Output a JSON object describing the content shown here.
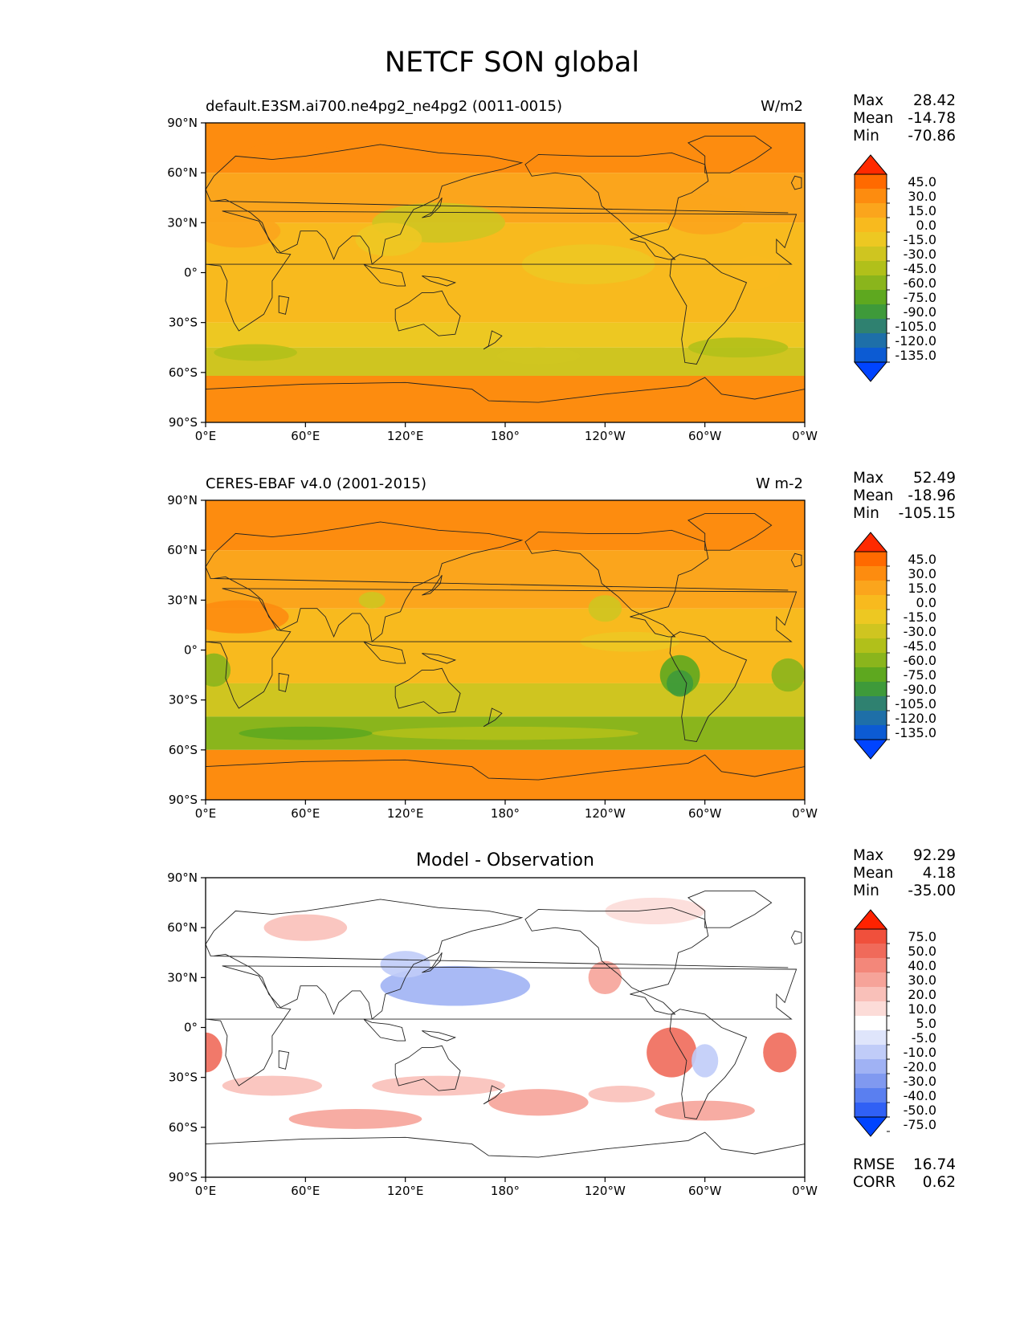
{
  "title": "NETCF SON global",
  "lat_ticks": [
    "90°N",
    "60°N",
    "30°N",
    "0°",
    "30°S",
    "60°S",
    "90°S"
  ],
  "lon_ticks": [
    "0°E",
    "60°E",
    "120°E",
    "180°",
    "120°W",
    "60°W",
    "0°W"
  ],
  "panels": [
    {
      "left_title": "default.E3SM.ai700.ne4pg2_ne4pg2 (0011-0015)",
      "center_title": "",
      "right_title": "W/m2",
      "stats": [
        {
          "label": "Max",
          "value": "28.42"
        },
        {
          "label": "Mean",
          "value": "-14.78"
        },
        {
          "label": "Min",
          "value": "-70.86"
        }
      ],
      "levels": [
        "45.0",
        "30.0",
        "15.0",
        "0.0",
        "-15.0",
        "-30.0",
        "-45.0",
        "-60.0",
        "-75.0",
        "-90.0",
        "-105.0",
        "-120.0",
        "-135.0"
      ],
      "colors": [
        "#ff2a00",
        "#ff6a00",
        "#fd8c0f",
        "#fba51c",
        "#f8ba1e",
        "#edc822",
        "#cfc520",
        "#b1c01a",
        "#8ab51c",
        "#5ea81f",
        "#3e9a3a",
        "#2f8170",
        "#1e6fa8",
        "#0c5bd3",
        "#0044ff"
      ],
      "extra": []
    },
    {
      "left_title": "CERES-EBAF v4.0 (2001-2015)",
      "center_title": "",
      "right_title": "W m-2",
      "stats": [
        {
          "label": "Max",
          "value": "52.49"
        },
        {
          "label": "Mean",
          "value": "-18.96"
        },
        {
          "label": "Min",
          "value": "-105.15"
        }
      ],
      "levels": [
        "45.0",
        "30.0",
        "15.0",
        "0.0",
        "-15.0",
        "-30.0",
        "-45.0",
        "-60.0",
        "-75.0",
        "-90.0",
        "-105.0",
        "-120.0",
        "-135.0"
      ],
      "colors": [
        "#ff2a00",
        "#ff6a00",
        "#fd8c0f",
        "#fba51c",
        "#f8ba1e",
        "#edc822",
        "#cfc520",
        "#b1c01a",
        "#8ab51c",
        "#5ea81f",
        "#3e9a3a",
        "#2f8170",
        "#1e6fa8",
        "#0c5bd3",
        "#0044ff"
      ],
      "extra": []
    },
    {
      "left_title": "",
      "center_title": "Model - Observation",
      "right_title": "",
      "stats": [
        {
          "label": "Max",
          "value": "92.29"
        },
        {
          "label": "Mean",
          "value": "4.18"
        },
        {
          "label": "Min",
          "value": "-35.00"
        }
      ],
      "levels": [
        "75.0",
        "50.0",
        "40.0",
        "30.0",
        "20.0",
        "10.0",
        "5.0",
        "-5.0",
        "-10.0",
        "-20.0",
        "-30.0",
        "-40.0",
        "-50.0",
        "-75.0"
      ],
      "colors": [
        "#ff2200",
        "#f0503c",
        "#f06a5a",
        "#f3877a",
        "#f6a399",
        "#f9c0b9",
        "#fcdcd8",
        "#ffffff",
        "#dfe5fb",
        "#c0ccf8",
        "#a0b2f4",
        "#8099f0",
        "#5a7ff0",
        "#3060f5",
        "#0044ff"
      ],
      "extra": [
        {
          "label": "RMSE",
          "value": "16.74"
        },
        {
          "label": "CORR",
          "value": "0.62"
        }
      ]
    }
  ]
}
